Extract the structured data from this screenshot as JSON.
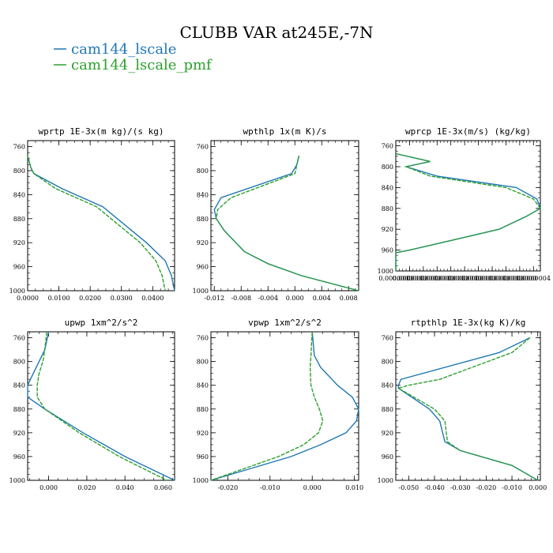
{
  "title": "CLUBB VAR at245E,-7N",
  "legend": [
    {
      "label": "cam144_lscale",
      "color": "#1f77b4"
    },
    {
      "label": "cam144_lscale_pmf",
      "color": "#2ca02c"
    }
  ],
  "chart_data": [
    {
      "type": "line",
      "title": "wprtp  1E-3x(m kg)/(s kg)",
      "xlim": [
        0.0,
        0.047
      ],
      "ylim": [
        1000,
        750
      ],
      "xticks": [
        0.0,
        0.01,
        0.02,
        0.03,
        0.04
      ],
      "xtick_labels": [
        "0.0000",
        "0.0100",
        "0.0200",
        "0.0300",
        "0.0400"
      ],
      "yticks": [
        760,
        800,
        840,
        880,
        920,
        960,
        1000
      ],
      "series": [
        {
          "name": "cam144_lscale",
          "color": "#1f77b4",
          "y": [
            775,
            795,
            805,
            830,
            860,
            890,
            920,
            950,
            975,
            1000
          ],
          "x": [
            0.0,
            0.001,
            0.002,
            0.011,
            0.024,
            0.031,
            0.038,
            0.044,
            0.046,
            0.047
          ]
        },
        {
          "name": "cam144_lscale_pmf",
          "color": "#2ca02c",
          "y": [
            775,
            795,
            805,
            830,
            860,
            890,
            920,
            950,
            975,
            1000
          ],
          "x": [
            0.0,
            0.001,
            0.002,
            0.009,
            0.022,
            0.029,
            0.036,
            0.041,
            0.043,
            0.044
          ]
        }
      ]
    },
    {
      "type": "line",
      "title": "wpthlp  1x(m K)/s",
      "xlim": [
        -0.0125,
        0.0095
      ],
      "ylim": [
        1000,
        750
      ],
      "xticks": [
        -0.012,
        -0.008,
        -0.004,
        0.0,
        0.004,
        0.008
      ],
      "xtick_labels": [
        "-0.012",
        "-0.008",
        "-0.004",
        "0.000",
        "0.004",
        "0.008"
      ],
      "yticks": [
        760,
        800,
        840,
        880,
        920,
        960,
        1000
      ],
      "series": [
        {
          "name": "cam144_lscale",
          "color": "#1f77b4",
          "y": [
            775,
            790,
            805,
            845,
            865,
            880,
            900,
            935,
            955,
            975,
            1000
          ],
          "x": [
            0.0006,
            0.0003,
            -0.0005,
            -0.011,
            -0.012,
            -0.0117,
            -0.0105,
            -0.0075,
            -0.004,
            0.001,
            0.0095
          ]
        },
        {
          "name": "cam144_lscale_pmf",
          "color": "#2ca02c",
          "y": [
            775,
            790,
            805,
            845,
            865,
            880,
            900,
            935,
            955,
            975,
            1000
          ],
          "x": [
            0.0006,
            0.0003,
            0.0,
            -0.0095,
            -0.0115,
            -0.0117,
            -0.0105,
            -0.0075,
            -0.004,
            0.001,
            0.0095
          ]
        }
      ]
    },
    {
      "type": "line",
      "title": "wprcp  1E-3x(m/s) (kg/kg)",
      "xlim": [
        0.0,
        4.2e-07
      ],
      "ylim": [
        1000,
        750
      ],
      "xticks": [
        0.0,
        4e-08,
        8e-08,
        1.2e-07,
        1.6e-07,
        2e-07,
        2.4e-07,
        2.8e-07,
        3.2e-07,
        3.6e-07,
        4e-07
      ],
      "xtick_labels": [
        "0.0000000",
        "0.0000000",
        "0.0000000",
        "0.0000000",
        "0.0000000",
        "0.0000000",
        "0.0000000",
        "0.0000000",
        "0.0000000",
        "0.0000000",
        "0.0000004"
      ],
      "yticks": [
        760,
        800,
        840,
        880,
        920,
        960,
        1000
      ],
      "series": [
        {
          "name": "cam144_lscale",
          "color": "#1f77b4",
          "y": [
            775,
            790,
            800,
            818,
            840,
            862,
            880,
            895,
            920,
            940,
            960,
            965,
            1000
          ],
          "x": [
            0.0,
            1e-07,
            3e-08,
            1.2e-07,
            3.5e-07,
            4.1e-07,
            4.2e-07,
            3.8e-07,
            3e-07,
            1.7e-07,
            4e-08,
            0.0,
            0.0
          ]
        },
        {
          "name": "cam144_lscale_pmf",
          "color": "#2ca02c",
          "y": [
            775,
            790,
            800,
            818,
            840,
            862,
            880,
            895,
            920,
            940,
            960,
            965,
            1000
          ],
          "x": [
            0.0,
            1e-07,
            3e-08,
            1e-07,
            3.2e-07,
            4e-07,
            4.2e-07,
            3.8e-07,
            3e-07,
            1.7e-07,
            4e-08,
            0.0,
            0.0
          ]
        }
      ]
    },
    {
      "type": "line",
      "title": "upwp  1xm^2/s^2",
      "xlim": [
        -0.011,
        0.066
      ],
      "ylim": [
        1000,
        750
      ],
      "xticks": [
        0.0,
        0.02,
        0.04,
        0.06
      ],
      "xtick_labels": [
        "0.000",
        "0.020",
        "0.040",
        "0.060"
      ],
      "yticks": [
        760,
        800,
        840,
        880,
        920,
        960,
        1000
      ],
      "series": [
        {
          "name": "cam144_lscale",
          "color": "#1f77b4",
          "y": [
            750,
            780,
            800,
            820,
            840,
            860,
            880,
            920,
            960,
            1000
          ],
          "x": [
            0.0,
            -0.002,
            -0.005,
            -0.008,
            -0.011,
            -0.011,
            -0.002,
            0.018,
            0.04,
            0.066
          ]
        },
        {
          "name": "cam144_lscale_pmf",
          "color": "#2ca02c",
          "y": [
            750,
            780,
            800,
            820,
            840,
            860,
            880,
            920,
            960,
            1000
          ],
          "x": [
            -0.001,
            -0.002,
            -0.003,
            -0.005,
            -0.006,
            -0.006,
            -0.002,
            0.016,
            0.037,
            0.062
          ]
        }
      ]
    },
    {
      "type": "line",
      "title": "vpwp  1xm^2/s^2",
      "xlim": [
        -0.024,
        0.011
      ],
      "ylim": [
        1000,
        750
      ],
      "xticks": [
        -0.02,
        -0.01,
        0.0,
        0.01
      ],
      "xtick_labels": [
        "-0.020",
        "-0.010",
        "0.000",
        "0.010"
      ],
      "yticks": [
        760,
        800,
        840,
        880,
        920,
        960,
        1000
      ],
      "series": [
        {
          "name": "cam144_lscale",
          "color": "#1f77b4",
          "y": [
            750,
            790,
            810,
            840,
            860,
            880,
            900,
            920,
            940,
            960,
            1000
          ],
          "x": [
            0.0,
            0.0005,
            0.002,
            0.006,
            0.0095,
            0.011,
            0.0105,
            0.008,
            0.002,
            -0.005,
            -0.024
          ]
        },
        {
          "name": "cam144_lscale_pmf",
          "color": "#2ca02c",
          "y": [
            750,
            790,
            810,
            840,
            860,
            880,
            900,
            920,
            940,
            960,
            1000
          ],
          "x": [
            0.0,
            -0.0003,
            -0.0005,
            -0.0003,
            0.0005,
            0.0017,
            0.0025,
            0.0015,
            -0.002,
            -0.008,
            -0.024
          ]
        }
      ]
    },
    {
      "type": "line",
      "title": "rtpthlp  1E-3x(kg K)/kg",
      "xlim": [
        -0.055,
        0.001
      ],
      "ylim": [
        1000,
        750
      ],
      "xticks": [
        -0.05,
        -0.04,
        -0.03,
        -0.02,
        -0.01,
        0.0
      ],
      "xtick_labels": [
        "-0.050",
        "-0.040",
        "-0.030",
        "-0.020",
        "-0.010",
        "0.000"
      ],
      "yticks": [
        760,
        800,
        840,
        880,
        920,
        960,
        1000
      ],
      "series": [
        {
          "name": "cam144_lscale",
          "color": "#1f77b4",
          "y": [
            760,
            785,
            830,
            840,
            845,
            880,
            900,
            935,
            950,
            975,
            1000
          ],
          "x": [
            -0.003,
            -0.015,
            -0.053,
            -0.054,
            -0.054,
            -0.042,
            -0.038,
            -0.036,
            -0.03,
            -0.01,
            0.0
          ]
        },
        {
          "name": "cam144_lscale_pmf",
          "color": "#2ca02c",
          "y": [
            760,
            785,
            830,
            840,
            845,
            880,
            900,
            935,
            950,
            975,
            1000
          ],
          "x": [
            -0.003,
            -0.01,
            -0.038,
            -0.05,
            -0.054,
            -0.04,
            -0.036,
            -0.035,
            -0.03,
            -0.01,
            0.0
          ]
        }
      ]
    }
  ]
}
